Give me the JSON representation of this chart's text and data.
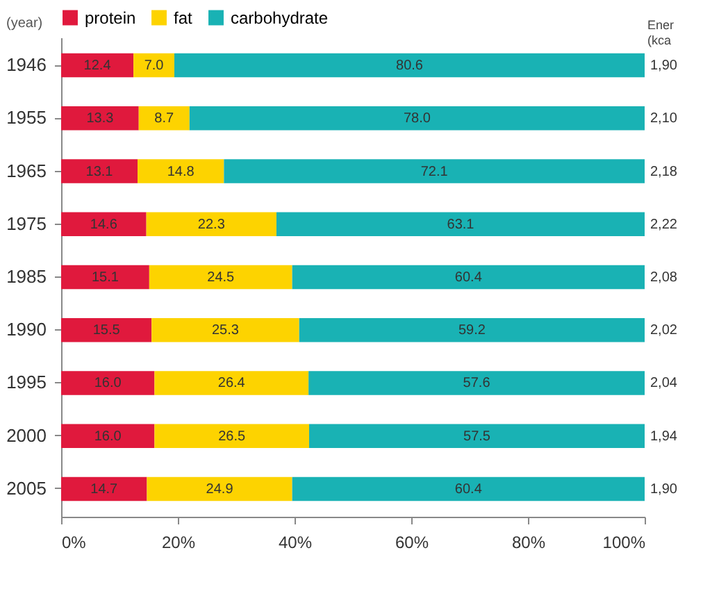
{
  "chart_data": {
    "type": "bar",
    "orientation": "horizontal",
    "stacked": true,
    "ylabel": "(year)",
    "categories": [
      "1946",
      "1955",
      "1965",
      "1975",
      "1985",
      "1990",
      "1995",
      "2000",
      "2005"
    ],
    "series": [
      {
        "name": "protein",
        "color": "#e0193d",
        "values": [
          12.4,
          13.3,
          13.1,
          14.6,
          15.1,
          15.5,
          16,
          16,
          14.7
        ],
        "value_labels": [
          "12.4",
          "13.3",
          "13.1",
          "14.6",
          "15.1",
          "15.5",
          "16.0",
          "16.0",
          "14.7"
        ]
      },
      {
        "name": "fat",
        "color": "#fdd300",
        "values": [
          7,
          8.7,
          14.8,
          22.3,
          24.5,
          25.3,
          26.4,
          26.5,
          24.9
        ],
        "value_labels": [
          "7.0",
          "8.7",
          "14.8",
          "22.3",
          "24.5",
          "25.3",
          "26.4",
          "26.5",
          "24.9"
        ]
      },
      {
        "name": "carbohydrate",
        "color": "#19b2b4",
        "values": [
          80.6,
          78,
          72.1,
          63.1,
          60.4,
          59.2,
          57.6,
          57.5,
          60.4
        ],
        "value_labels": [
          "80.6",
          "78.0",
          "72.1",
          "63.1",
          "60.4",
          "59.2",
          "57.6",
          "57.5",
          "60.4"
        ]
      }
    ],
    "xlim": [
      0,
      100
    ],
    "xticks": [
      {
        "value": 0,
        "label": "0%"
      },
      {
        "value": 20,
        "label": "20%"
      },
      {
        "value": 40,
        "label": "40%"
      },
      {
        "value": 60,
        "label": "60%"
      },
      {
        "value": 80,
        "label": "80%"
      },
      {
        "value": 100,
        "label": "100%"
      }
    ],
    "legend": "top",
    "grid": false,
    "annotations": [
      "Ener (kca",
      "1,90",
      "2,10",
      "2,18",
      "2,22",
      "2,08",
      "2,02",
      "2,04",
      "1,94",
      "1,90"
    ]
  }
}
